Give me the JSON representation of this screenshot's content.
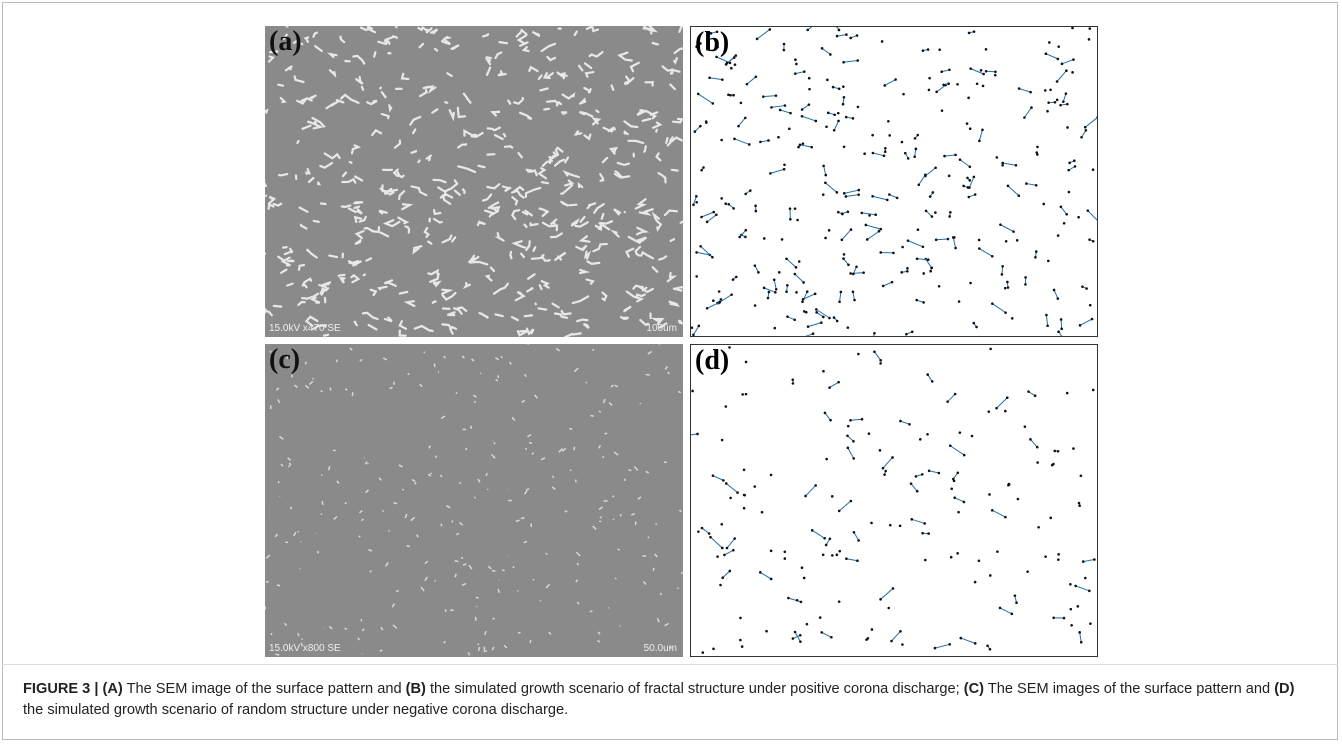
{
  "figure": {
    "panels": [
      {
        "label": "(a)",
        "footer_left": "15.0kV x470 SE",
        "footer_right": "100um"
      },
      {
        "label": "(b)"
      },
      {
        "label": "(c)",
        "footer_left": "15.0kV x800 SE",
        "footer_right": "50.0um"
      },
      {
        "label": "(d)"
      }
    ],
    "caption": {
      "label": "FIGURE 3 |",
      "segments": [
        {
          "tag": "(A)",
          "text": "The SEM image of the surface pattern and"
        },
        {
          "tag": "(B)",
          "text": "the simulated growth scenario of fractal structure under positive corona discharge;"
        },
        {
          "tag": "(C)",
          "text": "The SEM images of the surface pattern and"
        },
        {
          "tag": "(D)",
          "text": "the simulated growth scenario of random structure under negative corona discharge."
        }
      ]
    }
  }
}
